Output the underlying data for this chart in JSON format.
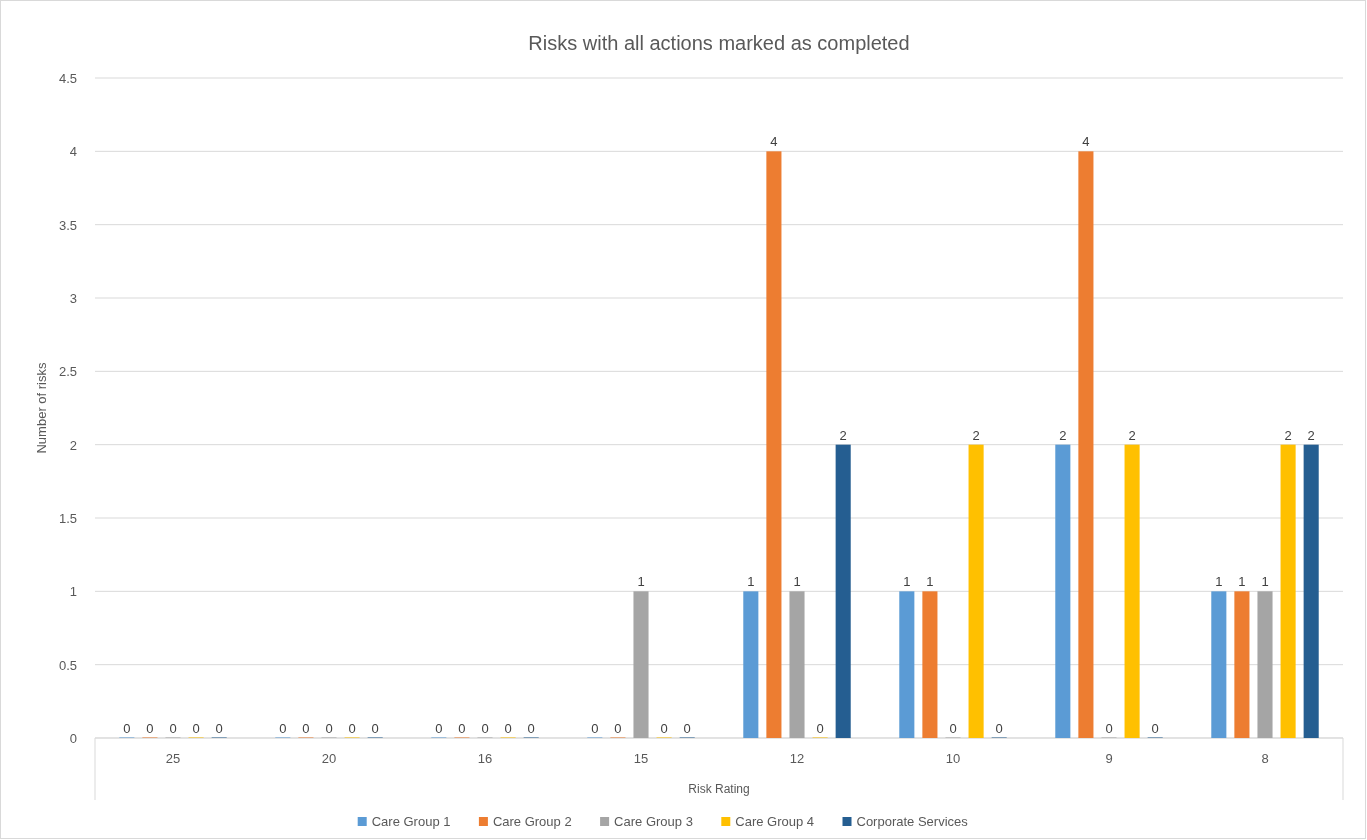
{
  "chart_data": {
    "type": "bar",
    "title": "Risks with all actions marked as completed",
    "xlabel": "Risk Rating",
    "ylabel": "Number of risks",
    "categories": [
      "25",
      "20",
      "16",
      "15",
      "12",
      "10",
      "9",
      "8"
    ],
    "series": [
      {
        "name": "Care Group 1",
        "color": "#5b9bd5",
        "values": [
          0,
          0,
          0,
          0,
          1,
          1,
          2,
          1
        ]
      },
      {
        "name": "Care Group 2",
        "color": "#ed7d31",
        "values": [
          0,
          0,
          0,
          0,
          4,
          1,
          4,
          1
        ]
      },
      {
        "name": "Care Group 3",
        "color": "#a5a5a5",
        "values": [
          0,
          0,
          0,
          1,
          1,
          0,
          0,
          1
        ]
      },
      {
        "name": "Care Group 4",
        "color": "#ffc000",
        "values": [
          0,
          0,
          0,
          0,
          0,
          2,
          2,
          2
        ]
      },
      {
        "name": "Corporate Services",
        "color": "#255e91",
        "values": [
          0,
          0,
          0,
          0,
          2,
          0,
          0,
          2
        ]
      }
    ],
    "ylim": [
      0,
      4.5
    ],
    "yticks": [
      0,
      0.5,
      1,
      1.5,
      2,
      2.5,
      3,
      3.5,
      4,
      4.5
    ],
    "grid": "y",
    "data_labels": true,
    "legend": "bottom"
  }
}
